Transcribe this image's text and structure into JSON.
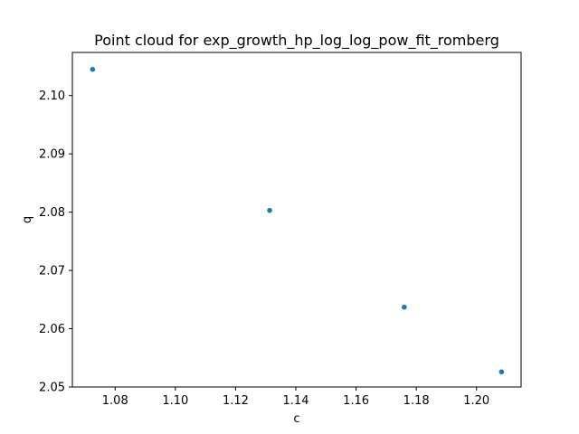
{
  "chart_data": {
    "type": "scatter",
    "title": "Point cloud for exp_growth_hp_log_log_pow_fit_romberg",
    "xlabel": "c",
    "ylabel": "q",
    "xlim": [
      1.0658,
      1.2148
    ],
    "ylim": [
      2.05,
      2.1074
    ],
    "xticks": [
      "1.08",
      "1.10",
      "1.12",
      "1.14",
      "1.16",
      "1.18",
      "1.20"
    ],
    "yticks": [
      "2.05",
      "2.06",
      "2.07",
      "2.08",
      "2.09",
      "2.10"
    ],
    "grid": false,
    "marker_color": "#1f77b4",
    "points": [
      {
        "x": 1.0725,
        "y": 2.1045
      },
      {
        "x": 1.1313,
        "y": 2.0803
      },
      {
        "x": 1.176,
        "y": 2.0637
      },
      {
        "x": 1.2083,
        "y": 2.0526
      }
    ]
  }
}
